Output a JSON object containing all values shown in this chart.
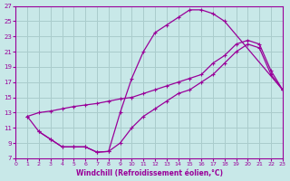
{
  "bg_color": "#c8e8e8",
  "line_color": "#990099",
  "grid_color": "#aacccc",
  "xlabel": "Windchill (Refroidissement éolien,°C)",
  "xlim": [
    0,
    23
  ],
  "ylim": [
    7,
    27
  ],
  "xticks": [
    0,
    1,
    2,
    3,
    4,
    5,
    6,
    7,
    8,
    9,
    10,
    11,
    12,
    13,
    14,
    15,
    16,
    17,
    18,
    19,
    20,
    21,
    22,
    23
  ],
  "yticks": [
    7,
    9,
    11,
    13,
    15,
    17,
    19,
    21,
    23,
    25,
    27
  ],
  "curve1_x": [
    1,
    2,
    3,
    4,
    5,
    6,
    7,
    8,
    9,
    10,
    11,
    12,
    13,
    14,
    15,
    16,
    17,
    18,
    23
  ],
  "curve1_y": [
    12.5,
    10.5,
    9.5,
    8.5,
    8.5,
    8.5,
    7.8,
    7.9,
    13.0,
    17.5,
    21.0,
    23.5,
    24.5,
    25.5,
    26.5,
    26.5,
    26.0,
    25.0,
    16.0
  ],
  "curve2_x": [
    1,
    2,
    3,
    4,
    5,
    6,
    7,
    8,
    9,
    10,
    11,
    12,
    13,
    14,
    15,
    16,
    17,
    18,
    19,
    20,
    21,
    22,
    23
  ],
  "curve2_y": [
    12.5,
    13.0,
    13.2,
    13.5,
    13.8,
    14.0,
    14.2,
    14.5,
    14.8,
    15.0,
    15.5,
    16.0,
    16.5,
    17.0,
    17.5,
    18.0,
    19.5,
    20.5,
    22.0,
    22.5,
    22.0,
    18.5,
    16.0
  ],
  "curve3_x": [
    2,
    3,
    4,
    5,
    6,
    7,
    8,
    9,
    10,
    11,
    12,
    13,
    14,
    15,
    16,
    17,
    18,
    19,
    20,
    21,
    22,
    23
  ],
  "curve3_y": [
    10.5,
    9.5,
    8.5,
    8.5,
    8.5,
    7.8,
    7.9,
    9.0,
    11.0,
    12.5,
    13.5,
    14.5,
    15.5,
    16.0,
    17.0,
    18.0,
    19.5,
    21.0,
    22.0,
    21.5,
    18.0,
    16.0
  ]
}
